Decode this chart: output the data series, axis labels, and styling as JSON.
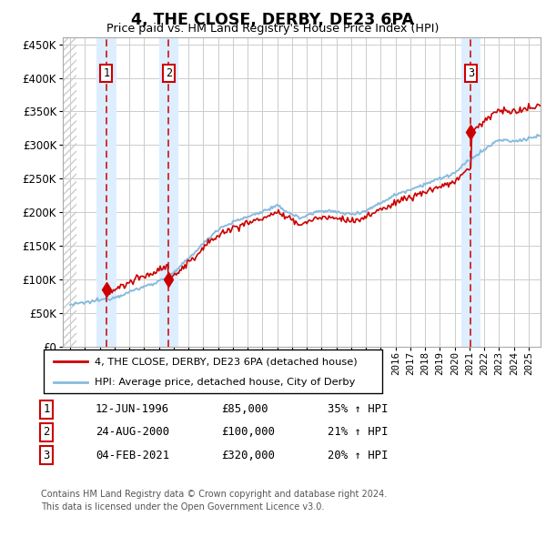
{
  "title": "4, THE CLOSE, DERBY, DE23 6PA",
  "subtitle": "Price paid vs. HM Land Registry's House Price Index (HPI)",
  "legend_label1": "4, THE CLOSE, DERBY, DE23 6PA (detached house)",
  "legend_label2": "HPI: Average price, detached house, City of Derby",
  "footnote1": "Contains HM Land Registry data © Crown copyright and database right 2024.",
  "footnote2": "This data is licensed under the Open Government Licence v3.0.",
  "table_rows": [
    [
      "1",
      "12-JUN-1996",
      "£85,000",
      "35% ↑ HPI"
    ],
    [
      "2",
      "24-AUG-2000",
      "£100,000",
      "21% ↑ HPI"
    ],
    [
      "3",
      "04-FEB-2021",
      "£320,000",
      "20% ↑ HPI"
    ]
  ],
  "sale_dates": [
    1996.45,
    2000.65,
    2021.09
  ],
  "sale_prices": [
    85000,
    100000,
    320000
  ],
  "sale_labels": [
    "1",
    "2",
    "3"
  ],
  "ylim": [
    0,
    460000
  ],
  "xlim_start": 1993.5,
  "xlim_end": 2025.8,
  "hpi_color": "#88bbdd",
  "price_color": "#cc0000",
  "sale_line_color": "#cc0000",
  "shade_color": "#ddeeff",
  "hatch_end": 1994.42
}
